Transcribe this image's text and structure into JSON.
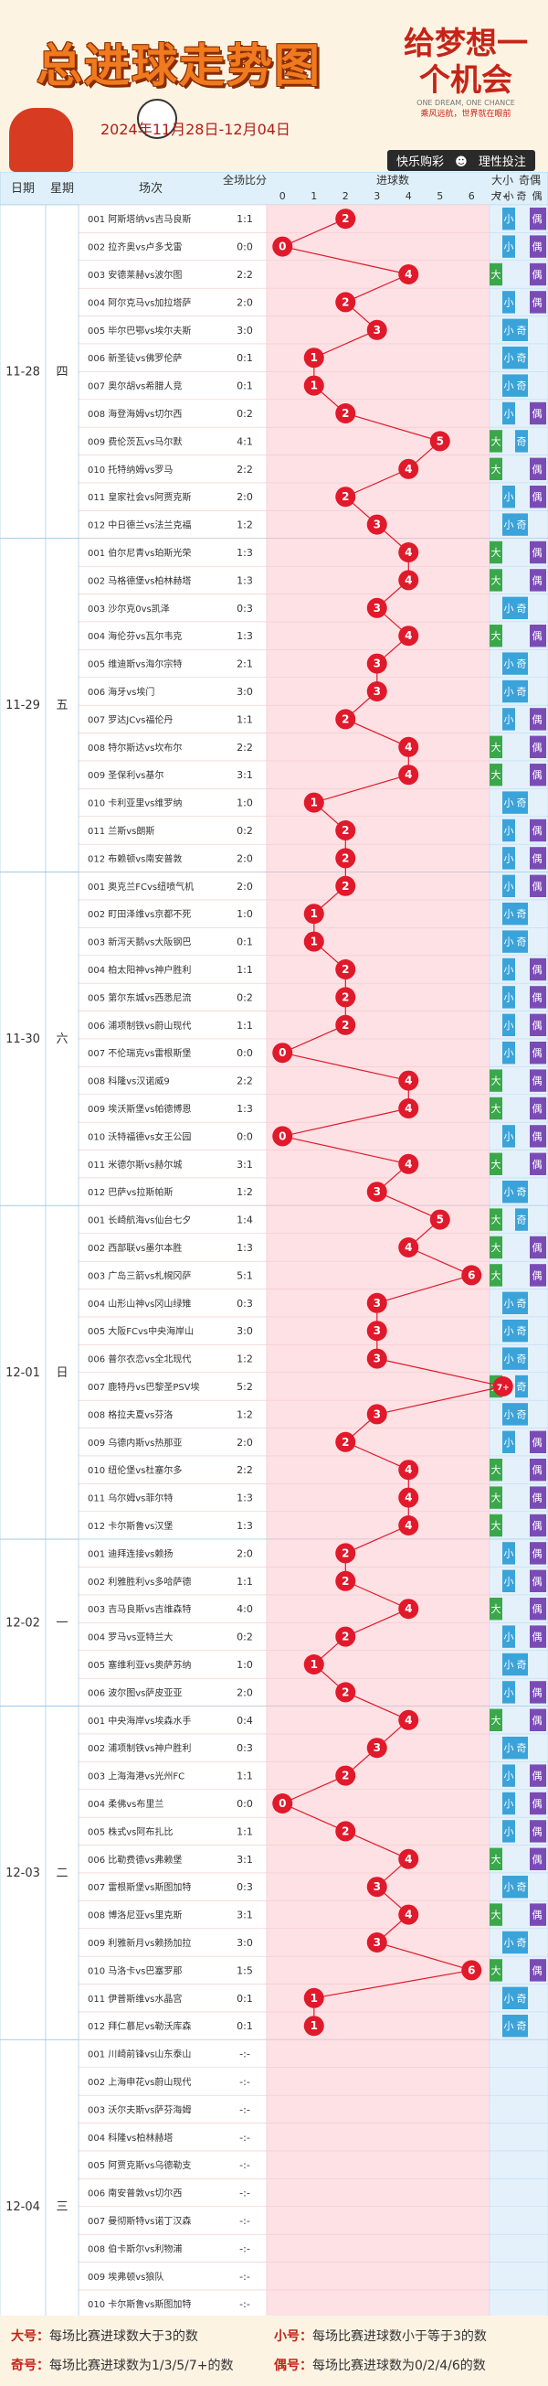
{
  "header": {
    "title": "总进球走势图",
    "date_range": "2024年11月28日-12月04日",
    "slogan": "给梦想一个机会",
    "slogan_en": "ONE DREAM, ONE CHANCE",
    "slogan_sub": "乘风远航，世界就在眼前",
    "link1": "快乐购彩",
    "link2": "理性投注"
  },
  "chart_data": {
    "type": "line",
    "title": "总进球走势图",
    "columns": {
      "date": "日期",
      "weekday": "星期",
      "match": "场次",
      "score": "全场比分",
      "goals": "进球数",
      "bigsmall": "大小",
      "oddeven": "奇偶",
      "big": "大",
      "small": "小",
      "odd": "奇",
      "even": "偶"
    },
    "goal_labels": [
      "0",
      "1",
      "2",
      "3",
      "4",
      "5",
      "6",
      "7+"
    ],
    "days": [
      {
        "date": "11-28",
        "weekday": "四",
        "matches": [
          [
            "001 阿斯塔纳vs吉马良斯",
            "1:1",
            2
          ],
          [
            "002 拉齐奥vs卢多戈雷",
            "0:0",
            0
          ],
          [
            "003 安德莱赫vs波尔图",
            "2:2",
            4
          ],
          [
            "004 阿尔克马vs加拉塔萨",
            "2:0",
            2
          ],
          [
            "005 毕尔巴鄂vs埃尔夫斯",
            "3:0",
            3
          ],
          [
            "006 新圣徒vs佛罗伦萨",
            "0:1",
            1
          ],
          [
            "007 奥尔胡vs希腊人竞",
            "0:1",
            1
          ],
          [
            "008 海登海姆vs切尔西",
            "0:2",
            2
          ],
          [
            "009 费伦茨瓦vs马尔默",
            "4:1",
            5
          ],
          [
            "010 托特纳姆vs罗马",
            "2:2",
            4
          ],
          [
            "011 皇家社会vs阿贾克斯",
            "2:0",
            2
          ],
          [
            "012 中日德兰vs法兰克福",
            "1:2",
            3
          ]
        ]
      },
      {
        "date": "11-29",
        "weekday": "五",
        "matches": [
          [
            "001 伯尔尼青vs珀斯光荣",
            "1:3",
            4
          ],
          [
            "002 马格德堡vs柏林赫塔",
            "1:3",
            4
          ],
          [
            "003 沙尔克0vs凯泽",
            "0:3",
            3
          ],
          [
            "004 海伦芬vs瓦尔韦克",
            "1:3",
            4
          ],
          [
            "005 维迪斯vs海尔宗特",
            "2:1",
            3
          ],
          [
            "006 海牙vs埃门",
            "3:0",
            3
          ],
          [
            "007 罗达JCvs福伦丹",
            "1:1",
            2
          ],
          [
            "008 特尔斯达vs坎布尔",
            "2:2",
            4
          ],
          [
            "009 圣保利vs基尔",
            "3:1",
            4
          ],
          [
            "010 卡利亚里vs维罗纳",
            "1:0",
            1
          ],
          [
            "011 兰斯vs朗斯",
            "0:2",
            2
          ],
          [
            "012 布赖顿vs南安普敦",
            "2:0",
            2
          ]
        ]
      },
      {
        "date": "11-30",
        "weekday": "六",
        "matches": [
          [
            "001 奥克兰FCvs纽喷气机",
            "2:0",
            2
          ],
          [
            "002 町田泽维vs京都不死",
            "1:0",
            1
          ],
          [
            "003 新泻天鹅vs大阪钢巴",
            "0:1",
            1
          ],
          [
            "004 柏太阳神vs神户胜利",
            "1:1",
            2
          ],
          [
            "005 第尔东城vs西悉尼流",
            "0:2",
            2
          ],
          [
            "006 浦项制铁vs蔚山现代",
            "1:1",
            2
          ],
          [
            "007 不伦瑞克vs雷根斯堡",
            "0:0",
            0
          ],
          [
            "008 科隆vs汉诺威9",
            "2:2",
            4
          ],
          [
            "009 埃沃斯堡vs帕德博恩",
            "1:3",
            4
          ],
          [
            "010 沃特福德vs女王公园",
            "0:0",
            0
          ],
          [
            "011 米德尔斯vs赫尔城",
            "3:1",
            4
          ],
          [
            "012 巴萨vs拉斯帕斯",
            "1:2",
            3
          ]
        ]
      },
      {
        "date": "12-01",
        "weekday": "日",
        "matches": [
          [
            "001 长崎航海vs仙台七夕",
            "1:4",
            5
          ],
          [
            "002 西部联vs墨尔本胜",
            "1:3",
            4
          ],
          [
            "003 广岛三箭vs札幌冈萨",
            "5:1",
            6
          ],
          [
            "004 山形山神vs冈山绿雉",
            "0:3",
            3
          ],
          [
            "005 大阪FCvs中央海岸山",
            "3:0",
            3
          ],
          [
            "006 普尔衣恋vs全北现代",
            "1:2",
            3
          ],
          [
            "007 鹿特丹vs巴黎圣PSV埃",
            "5:2",
            7
          ],
          [
            "008 格拉夫夏vs芬洛",
            "1:2",
            3
          ],
          [
            "009 乌德内斯vs热那亚",
            "2:0",
            2
          ],
          [
            "010 纽伦堡vs杜塞尔多",
            "2:2",
            4
          ],
          [
            "011 乌尔姆vs菲尔特",
            "1:3",
            4
          ],
          [
            "012 卡尔斯鲁vs汉堡",
            "1:3",
            4
          ]
        ]
      },
      {
        "date": "12-02",
        "weekday": "一",
        "matches": [
          [
            "001 迪拜连接vs赖扬",
            "2:0",
            2
          ],
          [
            "002 利雅胜利vs多哈萨德",
            "1:1",
            2
          ],
          [
            "003 吉马良斯vs吉维森特",
            "4:0",
            4
          ],
          [
            "004 罗马vs亚特兰大",
            "0:2",
            2
          ],
          [
            "005 塞维利亚vs奥萨苏纳",
            "1:0",
            1
          ],
          [
            "006 波尔图vs萨皮亚亚",
            "2:0",
            2
          ]
        ]
      },
      {
        "date": "12-03",
        "weekday": "二",
        "matches": [
          [
            "001 中央海岸vs埃森水手",
            "0:4",
            4
          ],
          [
            "002 浦项制铁vs神户胜利",
            "0:3",
            3
          ],
          [
            "003 上海海港vs光州FC",
            "1:1",
            2
          ],
          [
            "004 柔佛vs布里兰",
            "0:0",
            0
          ],
          [
            "005 株式vs阿布扎比",
            "1:1",
            2
          ],
          [
            "006 比勒费德vs弗赖堡",
            "3:1",
            4
          ],
          [
            "007 雷根斯堡vs斯图加特",
            "0:3",
            3
          ],
          [
            "008 博洛尼亚vs里克斯",
            "3:1",
            4
          ],
          [
            "009 利雅新月vs赖扬加拉",
            "3:0",
            3
          ],
          [
            "010 马洛卡vs巴塞罗那",
            "1:5",
            6
          ],
          [
            "011 伊普斯维vs水晶宫",
            "0:1",
            1
          ],
          [
            "012 拜仁慕尼vs勒沃库森",
            "0:1",
            1
          ]
        ]
      },
      {
        "date": "12-04",
        "weekday": "三",
        "matches": [
          [
            "001 川崎前锋vs山东泰山",
            "-:-",
            null
          ],
          [
            "002 上海申花vs蔚山现代",
            "-:-",
            null
          ],
          [
            "003 沃尔夫斯vs萨芬海姆",
            "-:-",
            null
          ],
          [
            "004 科隆vs柏林赫塔",
            "-:-",
            null
          ],
          [
            "005 阿贾克斯vs乌德勒支",
            "-:-",
            null
          ],
          [
            "006 南安普敦vs切尔西",
            "-:-",
            null
          ],
          [
            "007 曼彻斯特vs诺丁汉森",
            "-:-",
            null
          ],
          [
            "008 伯卡斯尔vs利物浦",
            "-:-",
            null
          ],
          [
            "009 埃弗顿vs狼队",
            "-:-",
            null
          ],
          [
            "010 卡尔斯鲁vs斯图加特",
            "-:-",
            null
          ],
          [
            "011 莱比锡红vs法兰克福",
            "-:-",
            null
          ],
          [
            "012 佛罗伦萨vs恩波利",
            "-:-",
            null
          ]
        ]
      }
    ],
    "colors": {
      "line": "#e0192b",
      "big": "#3aa84a",
      "small": "#3aa3d9",
      "odd": "#3aa3d9",
      "even": "#7b4bb5",
      "grid_pink": "#fde1e4",
      "grid_blue": "#e4f1fb",
      "hdr": "#dff0fa"
    }
  },
  "legend": {
    "big_term": "大号：",
    "big_desc": "每场比赛进球数大于3的数",
    "small_term": "小号：",
    "small_desc": "每场比赛进球数小于等于3的数",
    "odd_term": "奇号：",
    "odd_desc": "每场比赛进球数为1/3/5/7+的数",
    "even_term": "偶号：",
    "even_desc": "每场比赛进球数为0/2/4/6的数"
  }
}
